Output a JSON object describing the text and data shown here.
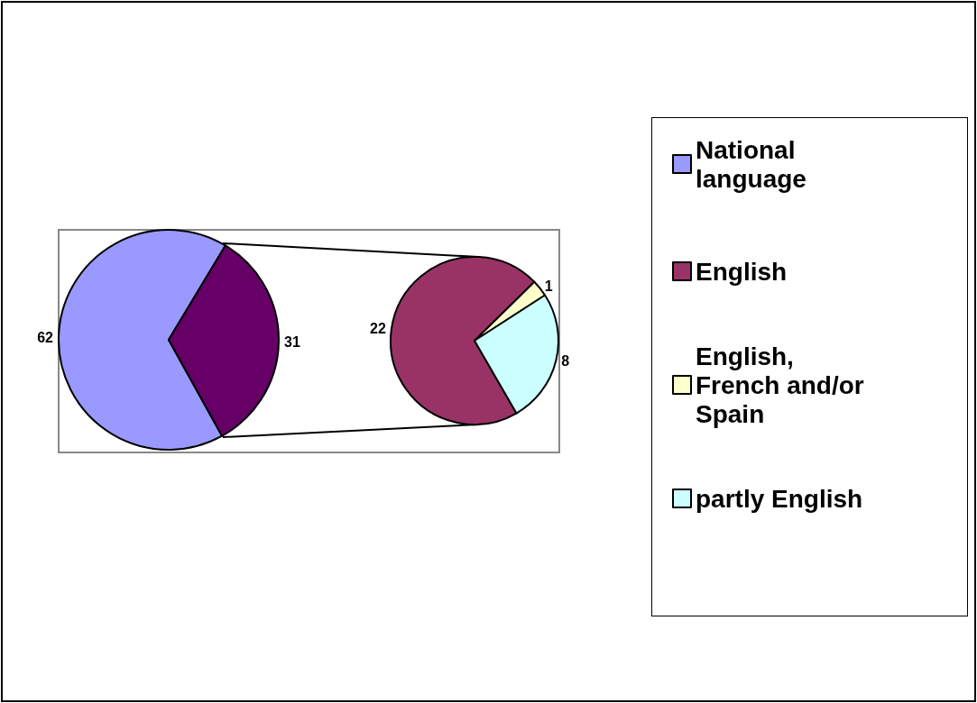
{
  "chart_data": [
    {
      "type": "pie",
      "categories": [
        "National language",
        null
      ],
      "values": [
        62,
        31
      ],
      "colors": [
        "#9999ff",
        "#660066"
      ],
      "data_labels": true,
      "legend": "right"
    },
    {
      "type": "pie",
      "categories": [
        "English",
        "English, French and/or Spain",
        "partly English"
      ],
      "values": [
        22,
        1,
        8
      ],
      "colors": [
        "#993366",
        "#ffffcc",
        "#ccffff"
      ],
      "data_labels": true,
      "legend": "right"
    }
  ]
}
